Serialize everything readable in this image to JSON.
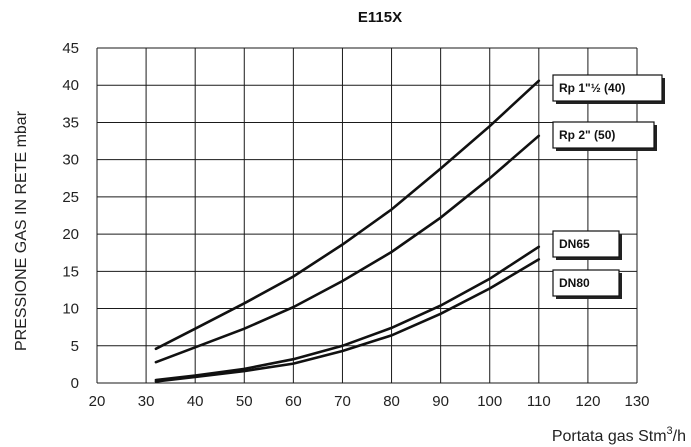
{
  "chart_data": {
    "type": "line",
    "title": "E115X",
    "xlabel": "Portata gas Stm",
    "xlabel_sup": "3",
    "xlabel_suffix": "/h",
    "ylabel": "PRESSIONE GAS IN RETE mbar",
    "xlim": [
      20,
      130
    ],
    "ylim": [
      0,
      45
    ],
    "xticks": [
      20,
      30,
      40,
      50,
      60,
      70,
      80,
      90,
      100,
      110,
      120,
      130
    ],
    "yticks": [
      0,
      5,
      10,
      15,
      20,
      25,
      30,
      35,
      40,
      45
    ],
    "grid": true,
    "series": [
      {
        "name": "Rp 1\"½ (40)",
        "x": [
          32,
          40,
          50,
          60,
          70,
          80,
          90,
          100,
          110
        ],
        "y": [
          4.6,
          7.3,
          10.7,
          14.3,
          18.6,
          23.3,
          28.8,
          34.5,
          40.6
        ]
      },
      {
        "name": "Rp 2\" (50)",
        "x": [
          32,
          40,
          50,
          60,
          70,
          80,
          90,
          100,
          110
        ],
        "y": [
          2.8,
          4.8,
          7.3,
          10.2,
          13.7,
          17.6,
          22.2,
          27.5,
          33.2
        ]
      },
      {
        "name": "DN65",
        "x": [
          32,
          40,
          50,
          60,
          70,
          80,
          90,
          100,
          110
        ],
        "y": [
          0.4,
          1.0,
          1.9,
          3.2,
          5.0,
          7.4,
          10.4,
          14.0,
          18.3
        ]
      },
      {
        "name": "DN80",
        "x": [
          32,
          40,
          50,
          60,
          70,
          80,
          90,
          100,
          110
        ],
        "y": [
          0.2,
          0.8,
          1.6,
          2.6,
          4.3,
          6.4,
          9.3,
          12.7,
          16.6
        ]
      }
    ]
  }
}
